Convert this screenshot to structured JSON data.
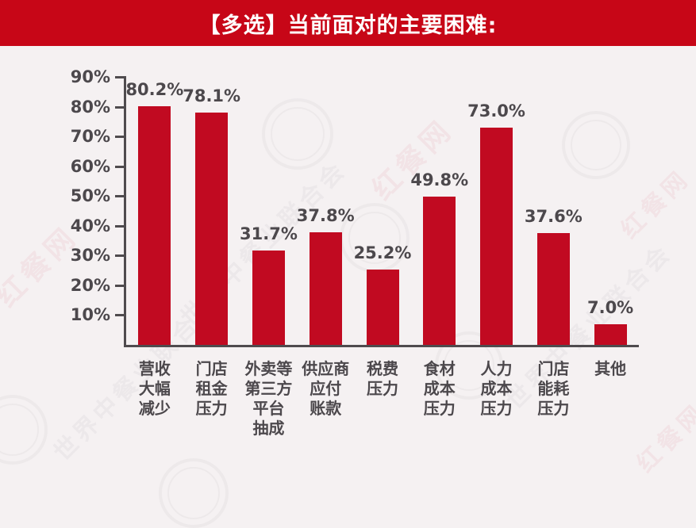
{
  "title": "【多选】当前面对的主要困难:",
  "colors": {
    "banner_red": "#c70617",
    "bar_red": "#c10a21",
    "background": "#f5f1f2",
    "axis": "#4f4b4e",
    "text": "#4c484c",
    "title_text": "#ffffff"
  },
  "watermarks": {
    "brand_red": "红餐网",
    "association_gray": "世界中餐业联合会"
  },
  "chart_data": {
    "type": "bar",
    "title": "【多选】当前面对的主要困难:",
    "categories": [
      "营收大幅减少",
      "门店租金压力",
      "外卖等第三方平台抽成",
      "供应商应付账款",
      "税费压力",
      "食材成本压力",
      "人力成本压力",
      "门店能耗压力",
      "其他"
    ],
    "category_lines": [
      [
        "营收",
        "大幅",
        "减少"
      ],
      [
        "门店",
        "租金",
        "压力"
      ],
      [
        "外卖等",
        "第三方",
        "平台",
        "抽成"
      ],
      [
        "供应商",
        "应付",
        "账款"
      ],
      [
        "税费",
        "压力"
      ],
      [
        "食材",
        "成本",
        "压力"
      ],
      [
        "人力",
        "成本",
        "压力"
      ],
      [
        "门店",
        "能耗",
        "压力"
      ],
      [
        "其他"
      ]
    ],
    "values": [
      80.2,
      78.1,
      31.7,
      37.8,
      25.2,
      49.8,
      73.0,
      37.6,
      7.0
    ],
    "data_labels": [
      "80.2%",
      "78.1%",
      "31.7%",
      "37.8%",
      "25.2%",
      "49.8%",
      "73.0%",
      "37.6%",
      "7.0%"
    ],
    "xlabel": "",
    "ylabel": "",
    "ylim": [
      0,
      90
    ],
    "yticks": [
      "90%",
      "80%",
      "70%",
      "60%",
      "50%",
      "40%",
      "30%",
      "20%",
      "10%"
    ],
    "ytick_values": [
      90,
      80,
      70,
      60,
      50,
      40,
      30,
      20,
      10
    ],
    "grid": false,
    "legend": null,
    "bar_color": "#c10a21"
  }
}
